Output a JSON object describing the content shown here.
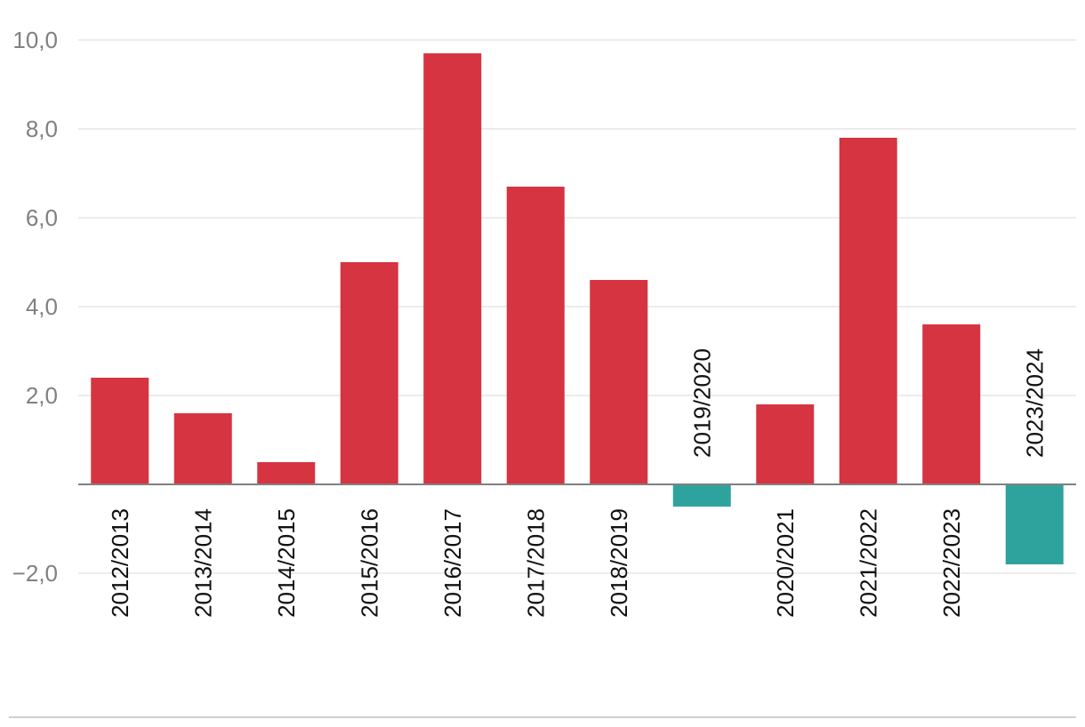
{
  "chart_data": {
    "type": "bar",
    "title": "",
    "xlabel": "",
    "ylabel": "",
    "ylim": [
      -2,
      10
    ],
    "yticks": [
      -2,
      2,
      4,
      6,
      8,
      10
    ],
    "ytick_labels": [
      "−2,0",
      "2,0",
      "4,0",
      "6,0",
      "8,0",
      "10,0"
    ],
    "grid": true,
    "categories": [
      "2012/2013",
      "2013/2014",
      "2014/2015",
      "2015/2016",
      "2016/2017",
      "2017/2018",
      "2018/2019",
      "2019/2020",
      "2020/2021",
      "2021/2022",
      "2022/2023",
      "2023/2024"
    ],
    "values": [
      2.4,
      1.6,
      0.5,
      5.0,
      9.7,
      6.7,
      4.6,
      -0.5,
      1.8,
      7.8,
      3.6,
      -1.8
    ],
    "colors": {
      "positive": "#d63441",
      "negative": "#2ea39d",
      "grid": "#d9d9d9",
      "axis": "#808080",
      "tick_text": "#808080"
    }
  }
}
